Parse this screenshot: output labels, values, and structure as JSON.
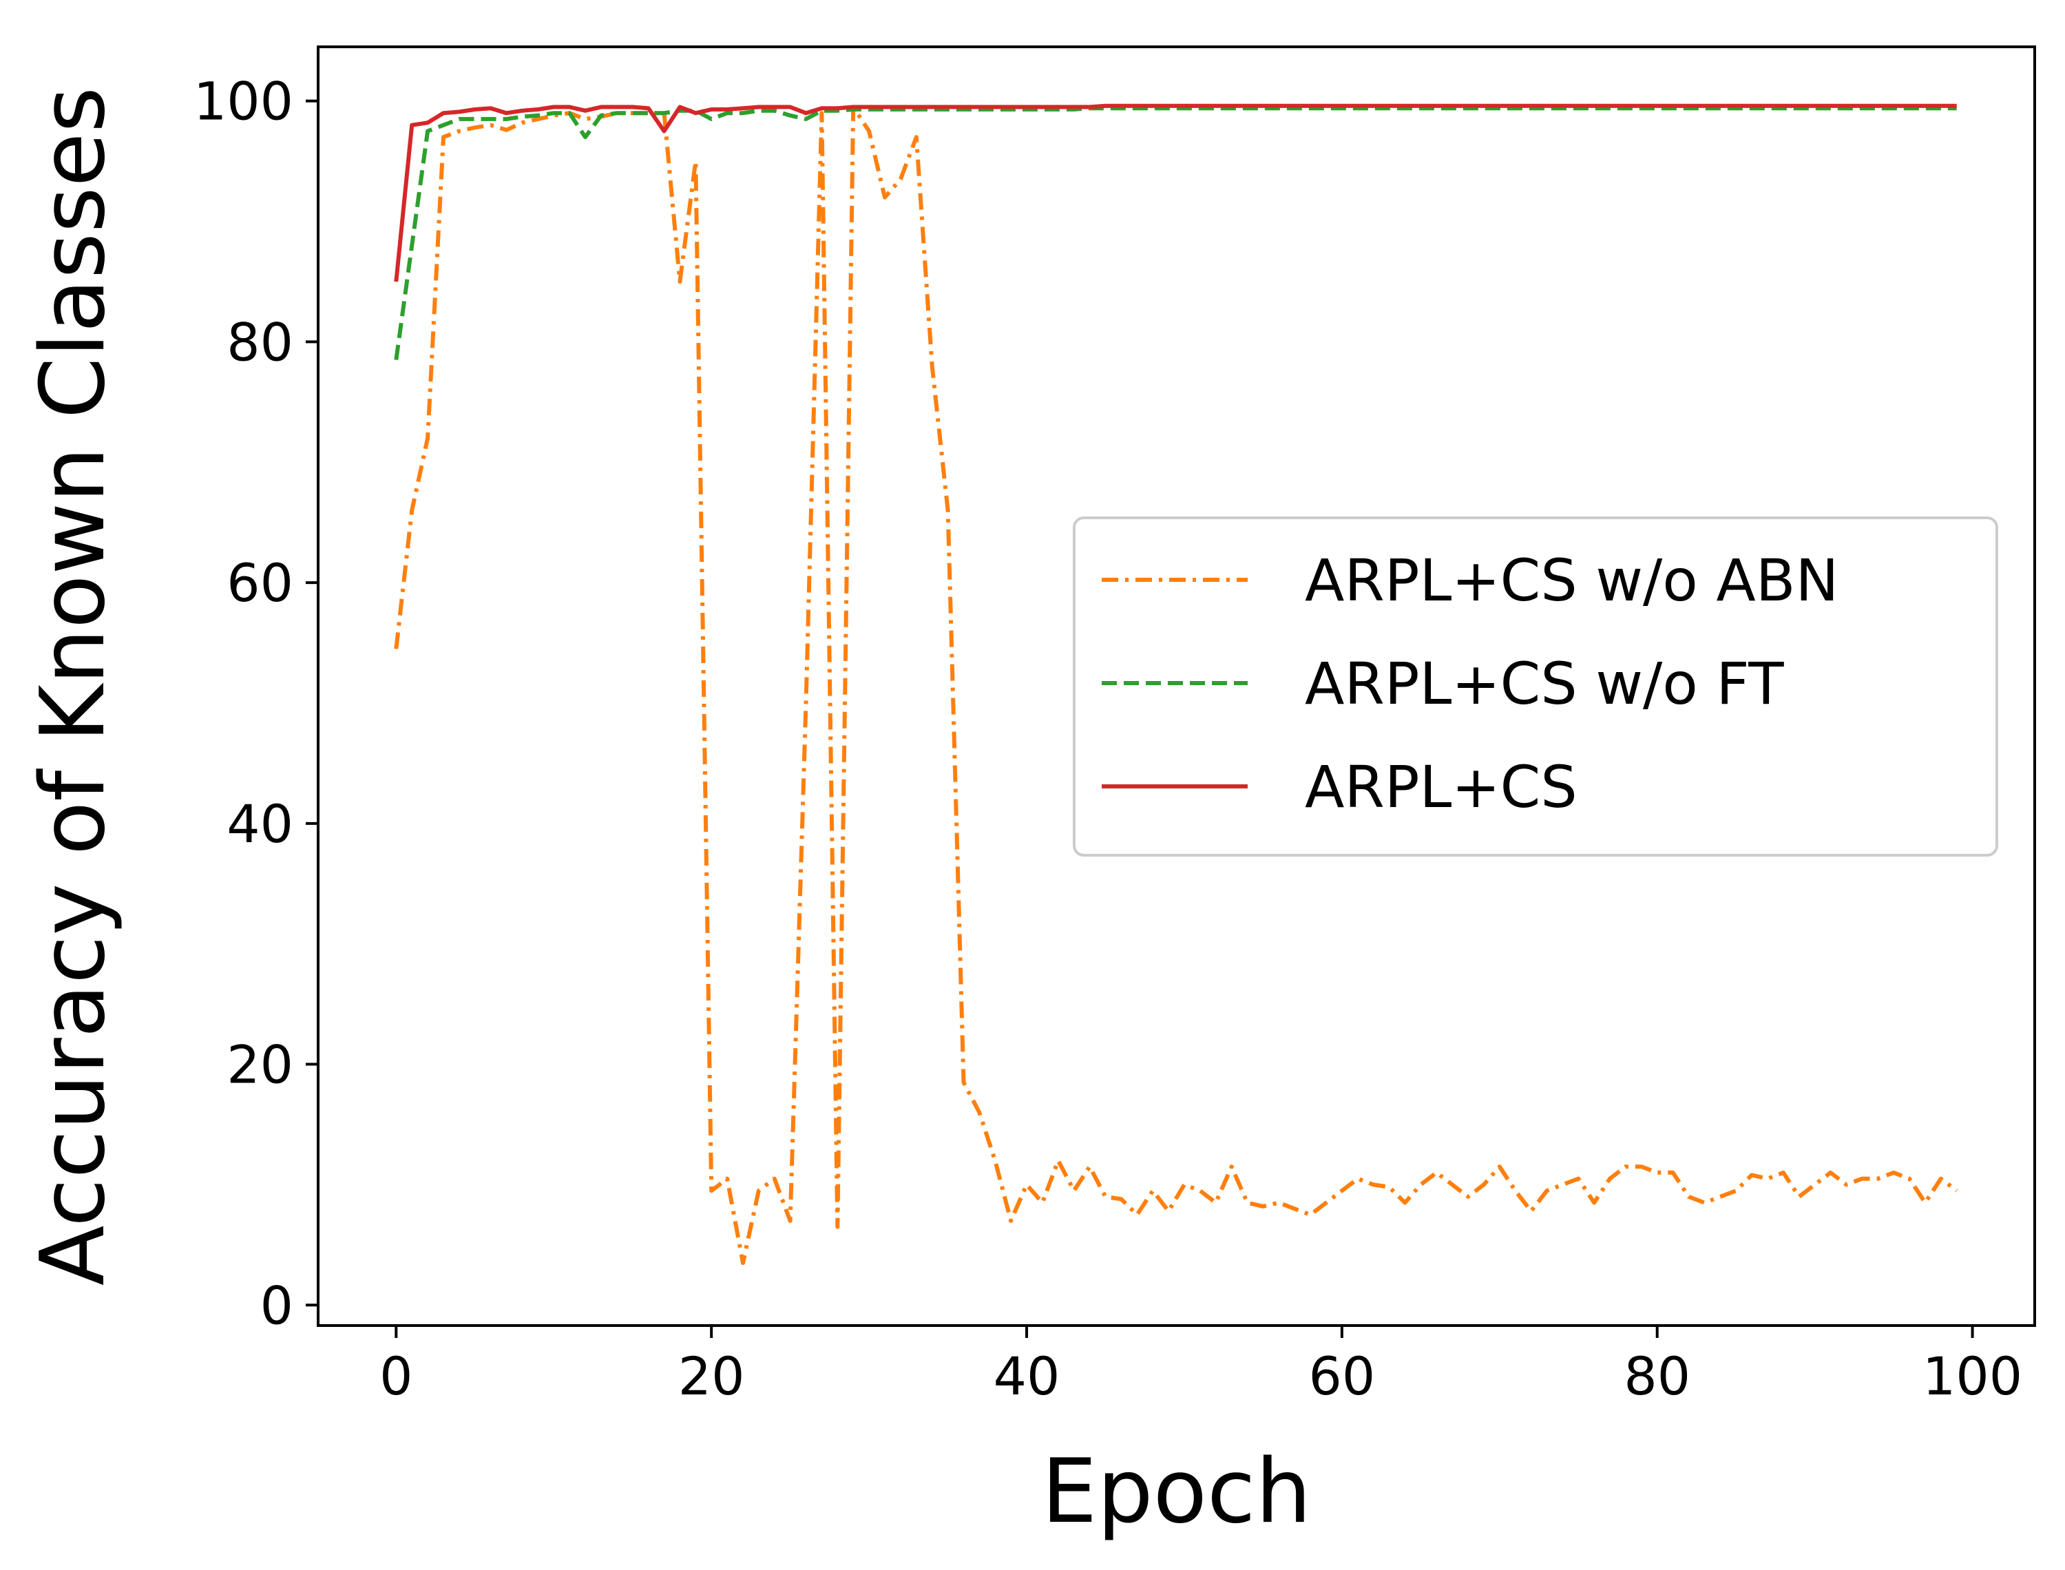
{
  "chart_data": {
    "type": "line",
    "title": "",
    "xlabel": "Epoch",
    "ylabel": "Accuracy of Known Classes",
    "xlim": [
      -4.95,
      103.95
    ],
    "ylim": [
      -1.7,
      104.5
    ],
    "xticks": [
      0,
      20,
      40,
      60,
      80,
      100
    ],
    "yticks": [
      0,
      20,
      40,
      60,
      80,
      100
    ],
    "grid": false,
    "legend_position": "center-right",
    "series": [
      {
        "name": "ARPL+CS w/o ABN",
        "color": "#ff7f0e",
        "linestyle": "dashdot",
        "x": [
          0,
          1,
          2,
          3,
          4,
          5,
          6,
          7,
          8,
          9,
          10,
          11,
          12,
          13,
          14,
          15,
          16,
          17,
          18,
          19,
          20,
          21,
          22,
          23,
          24,
          25,
          26,
          27,
          28,
          29,
          30,
          31,
          32,
          33,
          34,
          35,
          36,
          37,
          38,
          39,
          40,
          41,
          42,
          43,
          44,
          45,
          46,
          47,
          48,
          49,
          50,
          51,
          52,
          53,
          54,
          55,
          56,
          57,
          58,
          59,
          60,
          61,
          62,
          63,
          64,
          65,
          66,
          67,
          68,
          69,
          70,
          71,
          72,
          73,
          74,
          75,
          76,
          77,
          78,
          79,
          80,
          81,
          82,
          83,
          84,
          85,
          86,
          87,
          88,
          89,
          90,
          91,
          92,
          93,
          94,
          95,
          96,
          97,
          98,
          99
        ],
        "y": [
          54.5,
          66,
          72,
          97,
          97.5,
          97.8,
          98,
          97.6,
          98.2,
          98.5,
          98.8,
          99,
          98.5,
          98.7,
          99,
          99,
          99,
          99,
          85,
          95,
          9.5,
          10.5,
          3.5,
          9.5,
          10.5,
          7,
          50,
          99,
          6.5,
          99.5,
          97.5,
          92,
          93.5,
          97,
          78,
          66,
          18.5,
          16,
          12,
          7,
          10,
          8.5,
          12,
          9.5,
          11.5,
          9,
          8.8,
          7.5,
          9.5,
          7.8,
          10,
          9.5,
          8.5,
          11.5,
          8.5,
          8.2,
          8.5,
          8,
          7.5,
          8.5,
          9.5,
          10.5,
          10,
          9.8,
          8.5,
          10,
          11,
          10,
          9,
          10,
          11.5,
          9.5,
          7.8,
          9.5,
          10,
          10.5,
          8.5,
          10.5,
          11.5,
          11.5,
          11,
          11,
          9,
          8.5,
          9,
          9.5,
          10.8,
          10.5,
          11,
          9,
          10,
          11,
          10,
          10.5,
          10.5,
          11,
          10.5,
          8.5,
          10.5,
          9.5
        ]
      },
      {
        "name": "ARPL+CS w/o FT",
        "color": "#2ca02c",
        "linestyle": "dashed",
        "x": [
          0,
          1,
          2,
          3,
          4,
          5,
          6,
          7,
          8,
          9,
          10,
          11,
          12,
          13,
          14,
          15,
          16,
          17,
          18,
          19,
          20,
          21,
          22,
          23,
          24,
          25,
          26,
          27,
          28,
          29,
          30,
          31,
          32,
          33,
          34,
          35,
          36,
          37,
          38,
          39,
          40,
          41,
          42,
          43,
          44,
          45,
          46,
          47,
          48,
          49,
          50,
          51,
          52,
          53,
          54,
          55,
          56,
          57,
          58,
          59,
          60,
          61,
          62,
          63,
          64,
          65,
          66,
          67,
          68,
          69,
          70,
          71,
          72,
          73,
          74,
          75,
          76,
          77,
          78,
          79,
          80,
          81,
          82,
          83,
          84,
          85,
          86,
          87,
          88,
          89,
          90,
          91,
          92,
          93,
          94,
          95,
          96,
          97,
          98,
          99
        ],
        "y": [
          78.5,
          88,
          97.5,
          98,
          98.5,
          98.5,
          98.5,
          98.5,
          98.7,
          98.8,
          99,
          99,
          97,
          98.8,
          99,
          99,
          99,
          99,
          99.2,
          99.2,
          98.5,
          99,
          99,
          99.2,
          99.2,
          98.8,
          98.5,
          99.2,
          99.2,
          99.3,
          99.3,
          99.3,
          99.3,
          99.3,
          99.3,
          99.3,
          99.3,
          99.3,
          99.3,
          99.3,
          99.3,
          99.3,
          99.3,
          99.3,
          99.4,
          99.4,
          99.4,
          99.4,
          99.4,
          99.4,
          99.4,
          99.4,
          99.4,
          99.4,
          99.4,
          99.4,
          99.4,
          99.4,
          99.4,
          99.4,
          99.4,
          99.4,
          99.4,
          99.4,
          99.4,
          99.4,
          99.4,
          99.4,
          99.4,
          99.4,
          99.4,
          99.4,
          99.4,
          99.4,
          99.4,
          99.4,
          99.4,
          99.4,
          99.4,
          99.4,
          99.4,
          99.4,
          99.4,
          99.4,
          99.4,
          99.4,
          99.4,
          99.4,
          99.4,
          99.4,
          99.4,
          99.4,
          99.4,
          99.4,
          99.4,
          99.4,
          99.4,
          99.4,
          99.4,
          99.4
        ]
      },
      {
        "name": "ARPL+CS",
        "color": "#d62728",
        "linestyle": "solid",
        "x": [
          0,
          1,
          2,
          3,
          4,
          5,
          6,
          7,
          8,
          9,
          10,
          11,
          12,
          13,
          14,
          15,
          16,
          17,
          18,
          19,
          20,
          21,
          22,
          23,
          24,
          25,
          26,
          27,
          28,
          29,
          30,
          31,
          32,
          33,
          34,
          35,
          36,
          37,
          38,
          39,
          40,
          41,
          42,
          43,
          44,
          45,
          46,
          47,
          48,
          49,
          50,
          51,
          52,
          53,
          54,
          55,
          56,
          57,
          58,
          59,
          60,
          61,
          62,
          63,
          64,
          65,
          66,
          67,
          68,
          69,
          70,
          71,
          72,
          73,
          74,
          75,
          76,
          77,
          78,
          79,
          80,
          81,
          82,
          83,
          84,
          85,
          86,
          87,
          88,
          89,
          90,
          91,
          92,
          93,
          94,
          95,
          96,
          97,
          98,
          99
        ],
        "y": [
          85,
          98,
          98.2,
          99,
          99.1,
          99.3,
          99.4,
          99,
          99.2,
          99.3,
          99.5,
          99.5,
          99.2,
          99.5,
          99.5,
          99.5,
          99.4,
          97.5,
          99.5,
          99,
          99.3,
          99.3,
          99.4,
          99.5,
          99.5,
          99.5,
          99,
          99.4,
          99.4,
          99.5,
          99.5,
          99.5,
          99.5,
          99.5,
          99.5,
          99.5,
          99.5,
          99.5,
          99.5,
          99.5,
          99.5,
          99.5,
          99.5,
          99.5,
          99.5,
          99.6,
          99.6,
          99.6,
          99.6,
          99.6,
          99.6,
          99.6,
          99.6,
          99.6,
          99.6,
          99.6,
          99.6,
          99.6,
          99.6,
          99.6,
          99.6,
          99.6,
          99.6,
          99.6,
          99.6,
          99.6,
          99.6,
          99.6,
          99.6,
          99.6,
          99.6,
          99.6,
          99.6,
          99.6,
          99.6,
          99.6,
          99.6,
          99.6,
          99.6,
          99.6,
          99.6,
          99.6,
          99.6,
          99.6,
          99.6,
          99.6,
          99.6,
          99.6,
          99.6,
          99.6,
          99.6,
          99.6,
          99.6,
          99.6,
          99.6,
          99.6,
          99.6,
          99.6,
          99.6,
          99.6
        ]
      }
    ]
  }
}
